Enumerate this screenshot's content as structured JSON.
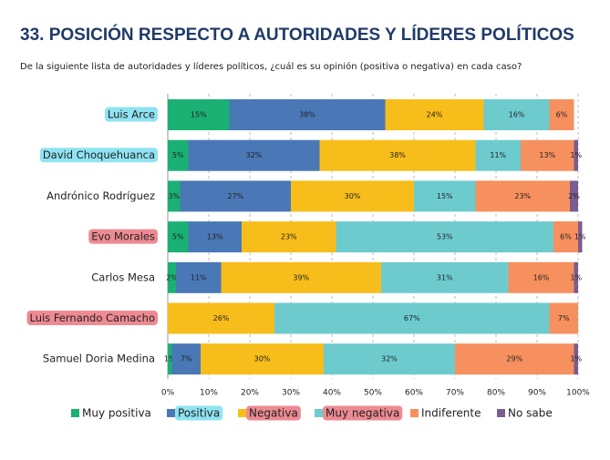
{
  "chart_data": {
    "type": "stacked-bar-horizontal",
    "title": "33. POSICIÓN RESPECTO A AUTORIDADES Y LÍDERES POLÍTICOS",
    "subtitle": "De la siguiente lista de autoridades y líderes políticos, ¿cuál es su opinión (positiva o negativa) en cada caso?",
    "categories": [
      "Luis Arce",
      "David Choquehuanca",
      "Andrónico Rodríguez",
      "Evo Morales",
      "Carlos Mesa",
      "Luis Fernando Camacho",
      "Samuel Doria Medina"
    ],
    "category_highlights": [
      "#8fe3f2",
      "#8fe3f2",
      null,
      "#ee8a92",
      null,
      "#ee8a92",
      null
    ],
    "series": [
      {
        "name": "Muy positiva",
        "color": "#1bb074",
        "highlight": null,
        "values": [
          15,
          5,
          3,
          5,
          2,
          null,
          1
        ],
        "value_labels": [
          "15%",
          "5%",
          "3%",
          "5%",
          "2%",
          null,
          "1%"
        ]
      },
      {
        "name": "Positiva",
        "color": "#4a78b6",
        "highlight": "#8fe3f2",
        "values": [
          38,
          32,
          27,
          13,
          11,
          null,
          7
        ],
        "value_labels": [
          "38%",
          "32%",
          "27%",
          "13%",
          "11%",
          null,
          "7%"
        ]
      },
      {
        "name": "Negativa",
        "color": "#f7bd1b",
        "highlight": "#ee8a92",
        "values": [
          24,
          38,
          30,
          23,
          39,
          26,
          30
        ],
        "value_labels": [
          "24%",
          "38%",
          "30%",
          "23%",
          "39%",
          "26%",
          "30%"
        ]
      },
      {
        "name": "Muy negativa",
        "color": "#6dcbce",
        "highlight": "#ee8a92",
        "values": [
          16,
          11,
          15,
          53,
          31,
          67,
          32
        ],
        "value_labels": [
          "16%",
          "11%",
          "15%",
          "53%",
          "31%",
          "67%",
          "32%"
        ]
      },
      {
        "name": "Indiferente",
        "color": "#f6905e",
        "highlight": null,
        "values": [
          6,
          13,
          23,
          6,
          16,
          7,
          29
        ],
        "value_labels": [
          "6%",
          "13%",
          "23%",
          "6%",
          "16%",
          "7%",
          "29%"
        ]
      },
      {
        "name": "No sabe",
        "color": "#7c5c8f",
        "highlight": null,
        "values": [
          null,
          1,
          2,
          1,
          1,
          null,
          1
        ],
        "value_labels": [
          null,
          "1%",
          "2%",
          "1%",
          "1%",
          null,
          "1%"
        ]
      }
    ],
    "xlim": [
      0,
      100
    ],
    "xticks": [
      {
        "value": 0,
        "label": "0%"
      },
      {
        "value": 10,
        "label": "10%"
      },
      {
        "value": 20,
        "label": "20%"
      },
      {
        "value": 30,
        "label": "30%"
      },
      {
        "value": 40,
        "label": "40%"
      },
      {
        "value": 50,
        "label": "50%"
      },
      {
        "value": 60,
        "label": "60%"
      },
      {
        "value": 70,
        "label": "70%"
      },
      {
        "value": 80,
        "label": "80%"
      },
      {
        "value": 90,
        "label": "90%"
      },
      {
        "value": 100,
        "label": "100%"
      }
    ],
    "grid": true
  }
}
